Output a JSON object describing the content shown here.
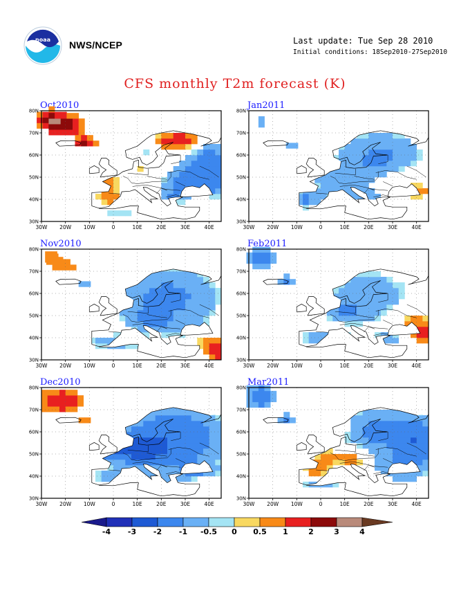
{
  "header": {
    "agency": "NWS/NCEP",
    "last_update": "Last update: Tue Sep 28 2010",
    "initial_conditions": "Initial conditions: 18Sep2010-27Sep2010",
    "logo_icon": "noaa-logo-icon"
  },
  "title": "CFS monthly T2m forecast (K)",
  "axes": {
    "lat_labels": [
      "80N",
      "70N",
      "60N",
      "50N",
      "40N",
      "30N"
    ],
    "lon_labels": [
      "30W",
      "20W",
      "10W",
      "0",
      "10E",
      "20E",
      "30E",
      "40E"
    ]
  },
  "panels": [
    {
      "id": "oct",
      "label": "Oct2010"
    },
    {
      "id": "jan",
      "label": "Jan2011"
    },
    {
      "id": "nov",
      "label": "Nov2010"
    },
    {
      "id": "feb",
      "label": "Feb2011"
    },
    {
      "id": "dec",
      "label": "Dec2010"
    },
    {
      "id": "mar",
      "label": "Mar2011"
    }
  ],
  "colorbar": {
    "labels": [
      "-4",
      "-3",
      "-2",
      "-1",
      "-0.5",
      "0",
      "0.5",
      "1",
      "2",
      "3",
      "4"
    ],
    "colors": [
      "#1a1a8c",
      "#2030b8",
      "#1e5ad4",
      "#3c87ee",
      "#6ab0f5",
      "#a4e4f4",
      "#f8d860",
      "#f88a18",
      "#e82020",
      "#8c0a0a",
      "#b98a7a",
      "#6a3a22"
    ],
    "low_end_color": "#1a1a8c",
    "high_end_color": "#6a3a22"
  },
  "chart_data": {
    "type": "heatmap",
    "title": "CFS monthly T2m forecast (K)",
    "units": "K",
    "region": "Europe, 30W-45E, 30N-80N",
    "months": [
      "Oct2010",
      "Nov2010",
      "Dec2010",
      "Jan2011",
      "Feb2011",
      "Mar2011"
    ],
    "contour_levels": [
      -4,
      -3,
      -2,
      -1,
      -0.5,
      0,
      0.5,
      1,
      2,
      3,
      4
    ]
  }
}
